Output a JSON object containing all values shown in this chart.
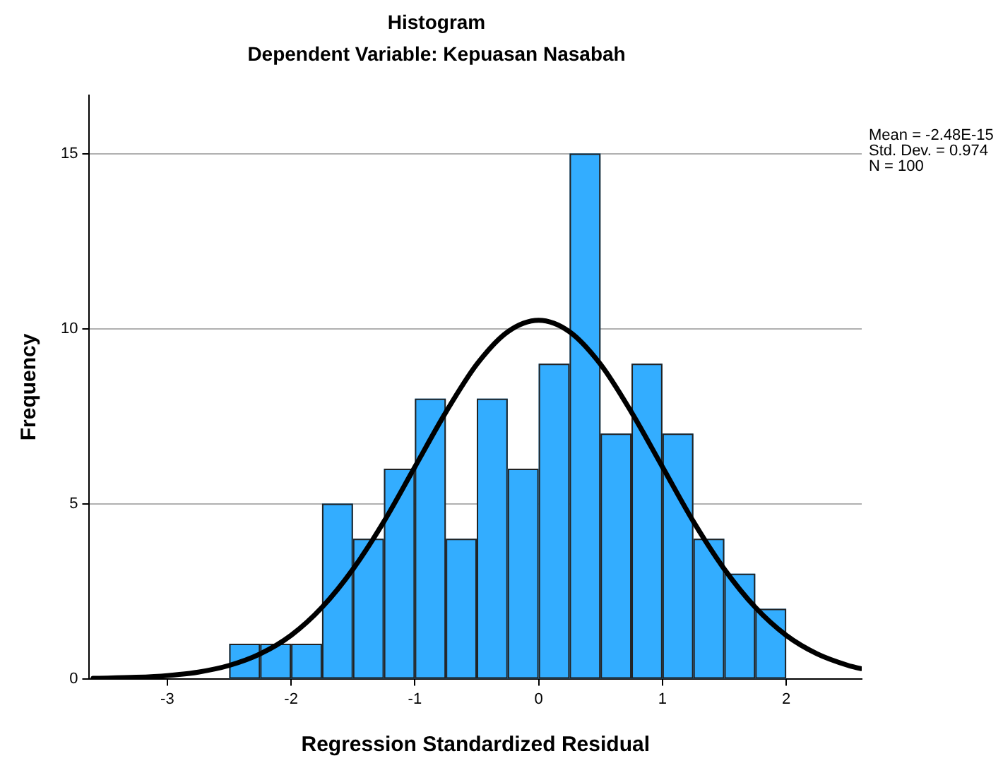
{
  "chart_data": {
    "type": "histogram",
    "title": "Histogram",
    "subtitle": "Dependent Variable: Kepuasan Nasabah",
    "xlabel": "Regression Standardized Residual",
    "ylabel": "Frequency",
    "bins": [
      -2.5,
      -2.25,
      -2,
      -1.75,
      -1.5,
      -1.25,
      -1,
      -0.75,
      -0.5,
      -0.25,
      0,
      0.25,
      0.5,
      0.75,
      1,
      1.25,
      1.5,
      1.75,
      2
    ],
    "values": [
      1,
      1,
      1,
      5,
      4,
      6,
      8,
      4,
      8,
      6,
      9,
      15,
      7,
      9,
      7,
      4,
      3,
      2
    ],
    "color": "#33adff",
    "series": [
      {
        "type": "line",
        "color": "#000000",
        "x": [
          -3.6,
          -3.25,
          -3,
          -2.75,
          -2.5,
          -2.25,
          -2,
          -1.75,
          -1.5,
          -1.25,
          -1,
          -0.75,
          -0.5,
          -0.25,
          0,
          0.25,
          0.5,
          0.75,
          1,
          1.25,
          1.5,
          1.75,
          2,
          2.25,
          2.5,
          2.6
        ],
        "values": [
          0.01,
          0.04,
          0.09,
          0.19,
          0.38,
          0.71,
          1.24,
          2.04,
          3.13,
          4.49,
          6.05,
          7.61,
          8.98,
          9.91,
          10.24,
          9.91,
          8.98,
          7.61,
          6.05,
          4.49,
          3.13,
          2.04,
          1.24,
          0.71,
          0.38,
          0.29
        ]
      }
    ],
    "xlim": [
      -3.63,
      2.61
    ],
    "xticks": [
      -3,
      -2,
      -1,
      0,
      1,
      2
    ],
    "ylim": [
      0,
      16.66
    ],
    "yticks": [
      0,
      5,
      10,
      15
    ],
    "grid": "y",
    "legend": false,
    "marker": "none",
    "line_style": "solid",
    "annotations": [
      "Mean = -2.48E-15",
      "Std. Dev. = 0.974",
      "N = 100"
    ]
  }
}
